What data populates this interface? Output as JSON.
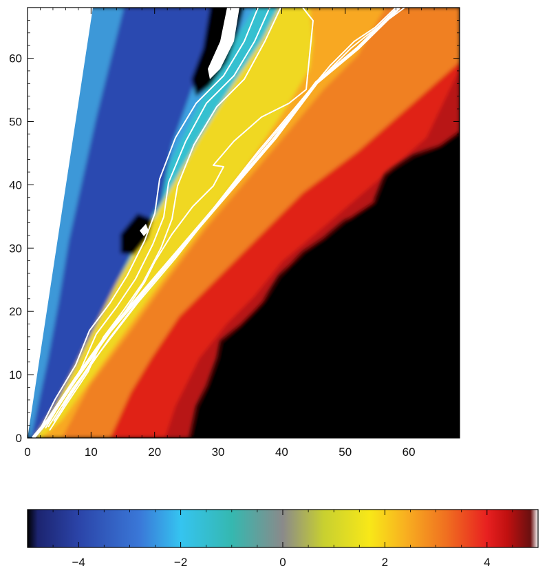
{
  "chart_data": {
    "type": "heatmap",
    "title": "",
    "xlabel": "",
    "ylabel": "",
    "xlim": [
      0,
      68
    ],
    "ylim": [
      0,
      68
    ],
    "x_ticks": [
      "0",
      "10",
      "20",
      "30",
      "40",
      "50",
      "60"
    ],
    "y_ticks": [
      "0",
      "10",
      "20",
      "30",
      "40",
      "50",
      "60"
    ],
    "colorbar": {
      "range": [
        -5,
        5
      ],
      "ticks": [
        "−4",
        "−2",
        "0",
        "2",
        "4"
      ],
      "colormap": [
        "#000000",
        "#1c2470",
        "#2b44a8",
        "#3a78d8",
        "#35c4f0",
        "#35b8b0",
        "#8a8a8a",
        "#c8d030",
        "#f8e818",
        "#f8b020",
        "#f07020",
        "#e82020",
        "#c01010",
        "#6a1010",
        "#ffffff"
      ]
    },
    "regions": [
      {
        "name": "blank (no data)",
        "value": null,
        "color": "#ffffff"
      },
      {
        "name": "strongly negative band",
        "value": -4,
        "color": "#2a48b0"
      },
      {
        "name": "moderately negative band",
        "value": -2.5,
        "color": "#3ea0e0"
      },
      {
        "name": "near zero band",
        "value": 0,
        "color": "#36c0d0"
      },
      {
        "name": "positive ridge",
        "value": 1.5,
        "color": "#f0d820"
      },
      {
        "name": "positive band",
        "value": 3,
        "color": "#f08020"
      },
      {
        "name": "strongly positive band",
        "value": 4,
        "color": "#e02018"
      },
      {
        "name": "saturated region",
        "value": 5,
        "color": "#000000"
      }
    ],
    "contours": [
      {
        "name": "upper contour set",
        "count": 3,
        "color": "#ffffff"
      },
      {
        "name": "ridge contour",
        "count": 1,
        "color": "#ffffff"
      },
      {
        "name": "lower contour set",
        "count": 3,
        "color": "#ffffff"
      }
    ]
  }
}
